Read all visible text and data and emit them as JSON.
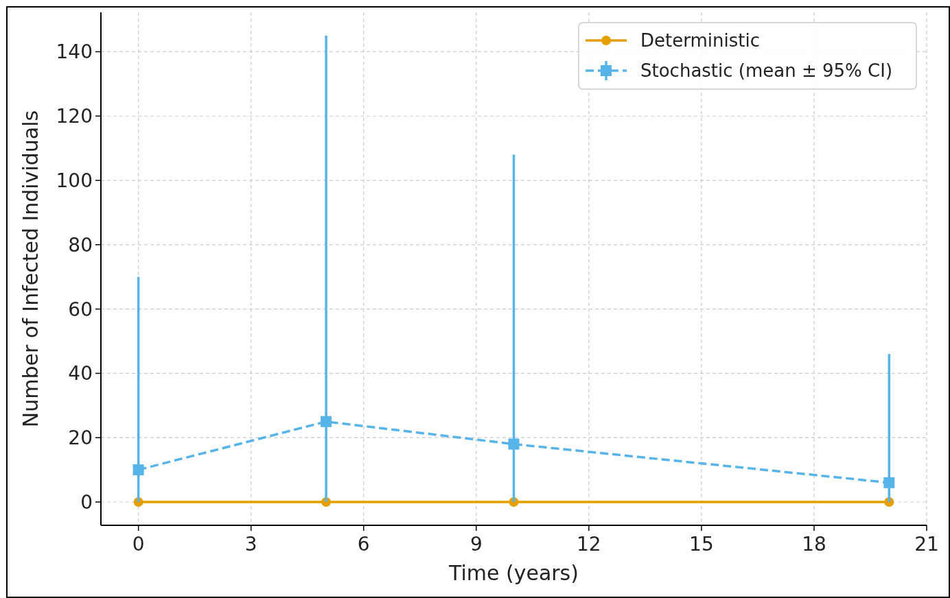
{
  "chart_data": {
    "type": "line",
    "xlabel": "Time (years)",
    "ylabel": "Number of Infected Individuals",
    "x": [
      0,
      5,
      10,
      20
    ],
    "series": [
      {
        "name": "Deterministic",
        "color": "#e69f00",
        "values": [
          0,
          0,
          0,
          0
        ],
        "marker": "circle",
        "line_style": "solid"
      },
      {
        "name": "Stochastic (mean ± 95% CI)",
        "color": "#56b4e9",
        "values": [
          10,
          25,
          18,
          6
        ],
        "marker": "square",
        "line_style": "dashed",
        "errors": [
          [
            0,
            70
          ],
          [
            0,
            145
          ],
          [
            0,
            108
          ],
          [
            0,
            46
          ]
        ]
      }
    ],
    "xlim": [
      -1,
      21
    ],
    "xticks": [
      0,
      3,
      6,
      9,
      12,
      15,
      18,
      21
    ],
    "ylim": [
      -7.25,
      152.25
    ],
    "yticks": [
      0,
      20,
      40,
      60,
      80,
      100,
      120,
      140
    ],
    "grid": true,
    "legend": "top right"
  }
}
